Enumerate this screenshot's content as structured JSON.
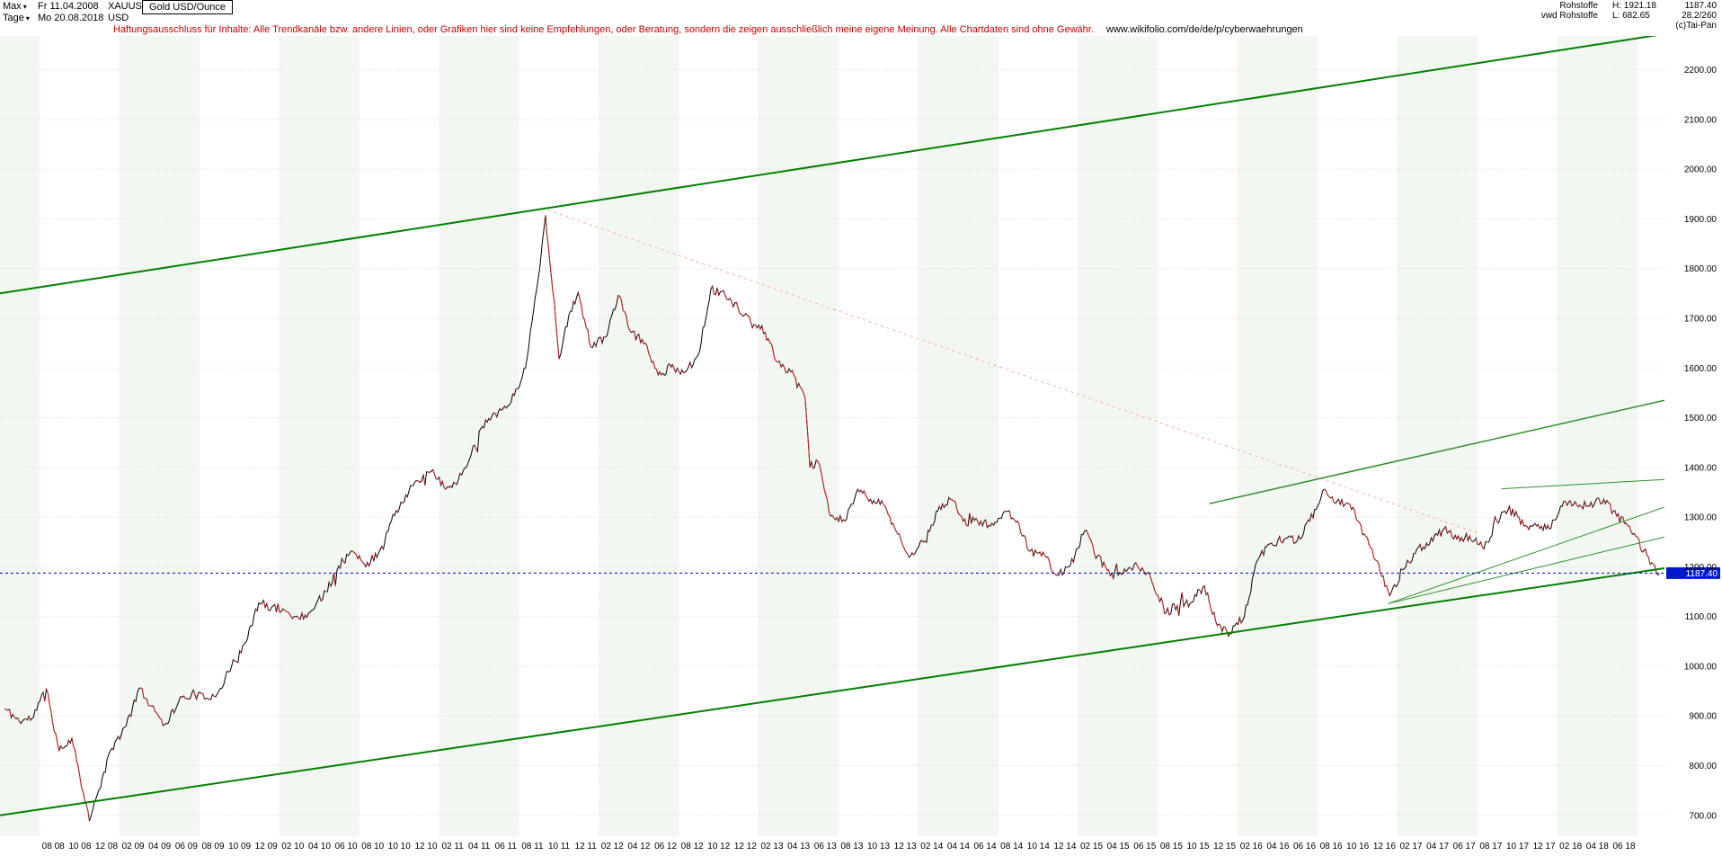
{
  "header": {
    "range_selector": {
      "label": "Max",
      "date": "Fr 11.04.2008"
    },
    "period_selector": {
      "label": "Tage",
      "date": "Mo 20.08.2018"
    },
    "symbol": "XAUUSD",
    "currency": "USD",
    "instrument_box": "Gold USD/Ounce",
    "disclaimer": "Haftungsausschluss für Inhalte: Alle Trendkanäle bzw. andere Linien, oder Grafiken hier sind keine Empfehlungen, oder Beratung, sondern die zeigen ausschließlich meine eigene Meinung. Alle Chartdaten sind ohne Gewähr.",
    "disclaimer_link": "www.wikifolio.com/de/de/p/cyberwaehrungen",
    "stats": {
      "row1_label": "Rohstoffe",
      "high_label": "H:",
      "high_value": "1921.18",
      "last_value": "1187.40",
      "row2_label": "vwd Rohstoffe",
      "low_label": "L:",
      "low_value": "682.65",
      "ratio_value": "28.2/260",
      "copyright": "(c)Tai-Pan"
    },
    "icons": {
      "dropdown_arrow": "▾"
    }
  },
  "chart_data": {
    "type": "line",
    "title": "Gold USD/Ounce",
    "symbol": "XAUUSD",
    "granularity": "Tage",
    "x_unit": "decimal_year",
    "x_range": [
      2008.25,
      2018.67
    ],
    "y_range": [
      658,
      2268
    ],
    "high": 1921.18,
    "low": 682.65,
    "last_price": 1187.4,
    "y_ticks": [
      700,
      800,
      900,
      1000,
      1100,
      1200,
      1300,
      1400,
      1500,
      1600,
      1700,
      1800,
      1900,
      2000,
      2100,
      2200
    ],
    "x_ticks": {
      "start_t": 2008.5833,
      "step_t": 0.1666667,
      "labels": [
        "08 08",
        "10 08",
        "12 08",
        "02 09",
        "04 09",
        "06 09",
        "08 09",
        "10 09",
        "12 09",
        "02 10",
        "04 10",
        "06 10",
        "08 10",
        "10 10",
        "12 10",
        "02 11",
        "04 11",
        "06 11",
        "08 11",
        "10 11",
        "12 11",
        "02 12",
        "04 12",
        "06 12",
        "08 12",
        "10 12",
        "12 12",
        "02 13",
        "04 13",
        "06 13",
        "08 13",
        "10 13",
        "12 13",
        "02 14",
        "04 14",
        "06 14",
        "08 14",
        "10 14",
        "12 14",
        "02 15",
        "04 15",
        "06 15",
        "08 15",
        "10 15",
        "12 15",
        "02 16",
        "04 16",
        "06 16",
        "08 16",
        "10 16",
        "12 16",
        "02 17",
        "04 17",
        "06 17",
        "08 17",
        "10 17",
        "12 17",
        "02 18",
        "04 18",
        "06 18"
      ]
    },
    "series": {
      "name": "XAUUSD Gold USD/Ounce",
      "noise": 9,
      "points": [
        [
          2008.28,
          915
        ],
        [
          2008.37,
          890
        ],
        [
          2008.45,
          895
        ],
        [
          2008.54,
          955
        ],
        [
          2008.62,
          830
        ],
        [
          2008.7,
          855
        ],
        [
          2008.79,
          722
        ],
        [
          2008.81,
          688
        ],
        [
          2008.87,
          752
        ],
        [
          2008.95,
          835
        ],
        [
          2009.04,
          880
        ],
        [
          2009.12,
          955
        ],
        [
          2009.2,
          920
        ],
        [
          2009.29,
          885
        ],
        [
          2009.37,
          930
        ],
        [
          2009.45,
          945
        ],
        [
          2009.54,
          935
        ],
        [
          2009.62,
          950
        ],
        [
          2009.7,
          1000
        ],
        [
          2009.79,
          1048
        ],
        [
          2009.87,
          1128
        ],
        [
          2009.95,
          1118
        ],
        [
          2010.04,
          1110
        ],
        [
          2010.12,
          1096
        ],
        [
          2010.2,
          1112
        ],
        [
          2010.29,
          1150
        ],
        [
          2010.37,
          1202
        ],
        [
          2010.45,
          1232
        ],
        [
          2010.54,
          1200
        ],
        [
          2010.62,
          1228
        ],
        [
          2010.7,
          1292
        ],
        [
          2010.79,
          1345
        ],
        [
          2010.87,
          1372
        ],
        [
          2010.95,
          1392
        ],
        [
          2011.04,
          1356
        ],
        [
          2011.12,
          1376
        ],
        [
          2011.2,
          1426
        ],
        [
          2011.29,
          1496
        ],
        [
          2011.37,
          1512
        ],
        [
          2011.45,
          1532
        ],
        [
          2011.54,
          1600
        ],
        [
          2011.62,
          1782
        ],
        [
          2011.665,
          1908
        ],
        [
          2011.7,
          1788
        ],
        [
          2011.75,
          1618
        ],
        [
          2011.79,
          1682
        ],
        [
          2011.87,
          1752
        ],
        [
          2011.95,
          1642
        ],
        [
          2012.04,
          1662
        ],
        [
          2012.12,
          1746
        ],
        [
          2012.2,
          1672
        ],
        [
          2012.29,
          1650
        ],
        [
          2012.37,
          1586
        ],
        [
          2012.45,
          1602
        ],
        [
          2012.54,
          1592
        ],
        [
          2012.62,
          1626
        ],
        [
          2012.7,
          1758
        ],
        [
          2012.79,
          1746
        ],
        [
          2012.87,
          1722
        ],
        [
          2012.95,
          1692
        ],
        [
          2013.04,
          1672
        ],
        [
          2013.12,
          1612
        ],
        [
          2013.2,
          1592
        ],
        [
          2013.29,
          1540
        ],
        [
          2013.32,
          1400
        ],
        [
          2013.37,
          1412
        ],
        [
          2013.45,
          1302
        ],
        [
          2013.54,
          1292
        ],
        [
          2013.62,
          1356
        ],
        [
          2013.7,
          1336
        ],
        [
          2013.79,
          1322
        ],
        [
          2013.87,
          1266
        ],
        [
          2013.95,
          1222
        ],
        [
          2014.04,
          1252
        ],
        [
          2014.12,
          1312
        ],
        [
          2014.2,
          1336
        ],
        [
          2014.29,
          1296
        ],
        [
          2014.37,
          1292
        ],
        [
          2014.45,
          1282
        ],
        [
          2014.54,
          1312
        ],
        [
          2014.62,
          1292
        ],
        [
          2014.7,
          1232
        ],
        [
          2014.79,
          1222
        ],
        [
          2014.87,
          1182
        ],
        [
          2014.95,
          1202
        ],
        [
          2015.04,
          1272
        ],
        [
          2015.12,
          1222
        ],
        [
          2015.2,
          1182
        ],
        [
          2015.29,
          1196
        ],
        [
          2015.37,
          1202
        ],
        [
          2015.45,
          1182
        ],
        [
          2015.54,
          1106
        ],
        [
          2015.62,
          1122
        ],
        [
          2015.7,
          1126
        ],
        [
          2015.79,
          1162
        ],
        [
          2015.87,
          1082
        ],
        [
          2015.95,
          1066
        ],
        [
          2016.04,
          1100
        ],
        [
          2016.12,
          1212
        ],
        [
          2016.2,
          1246
        ],
        [
          2016.29,
          1256
        ],
        [
          2016.37,
          1252
        ],
        [
          2016.45,
          1292
        ],
        [
          2016.54,
          1356
        ],
        [
          2016.62,
          1332
        ],
        [
          2016.7,
          1326
        ],
        [
          2016.79,
          1266
        ],
        [
          2016.87,
          1212
        ],
        [
          2016.95,
          1142
        ],
        [
          2017.04,
          1196
        ],
        [
          2017.12,
          1236
        ],
        [
          2017.2,
          1246
        ],
        [
          2017.29,
          1276
        ],
        [
          2017.37,
          1256
        ],
        [
          2017.45,
          1262
        ],
        [
          2017.54,
          1236
        ],
        [
          2017.62,
          1292
        ],
        [
          2017.7,
          1322
        ],
        [
          2017.79,
          1282
        ],
        [
          2017.87,
          1282
        ],
        [
          2017.95,
          1276
        ],
        [
          2018.04,
          1332
        ],
        [
          2018.12,
          1326
        ],
        [
          2018.2,
          1322
        ],
        [
          2018.29,
          1336
        ],
        [
          2018.37,
          1302
        ],
        [
          2018.45,
          1282
        ],
        [
          2018.54,
          1232
        ],
        [
          2018.6,
          1205
        ],
        [
          2018.638,
          1187.4
        ]
      ]
    },
    "trendlines": [
      {
        "name": "upper-channel",
        "t1": 2008.25,
        "p1": 1750,
        "t2": 2018.67,
        "p2": 2272,
        "color": "#008000",
        "width": 2,
        "dash": null
      },
      {
        "name": "lower-channel",
        "t1": 2008.25,
        "p1": 700,
        "t2": 2018.67,
        "p2": 1197,
        "color": "#008000",
        "width": 2,
        "dash": null
      },
      {
        "name": "resistance-2016",
        "t1": 2015.82,
        "p1": 1327,
        "t2": 2018.67,
        "p2": 1535,
        "color": "#2d8f2d",
        "width": 1.5,
        "dash": null
      },
      {
        "name": "support-fan-1",
        "t1": 2016.94,
        "p1": 1126,
        "t2": 2018.67,
        "p2": 1260,
        "color": "#2d8f2d",
        "width": 1,
        "dash": null
      },
      {
        "name": "support-fan-2",
        "t1": 2016.94,
        "p1": 1126,
        "t2": 2018.67,
        "p2": 1320,
        "color": "#2d8f2d",
        "width": 1,
        "dash": null
      },
      {
        "name": "resistance-flat",
        "t1": 2017.65,
        "p1": 1357,
        "t2": 2018.69,
        "p2": 1376,
        "color": "#2d8f2d",
        "width": 1,
        "dash": null
      },
      {
        "name": "downtrend-from-peak",
        "t1": 2011.68,
        "p1": 1918,
        "t2": 2017.5,
        "p2": 1268,
        "color": "#ffb3b3",
        "width": 1.2,
        "dash": "3,4"
      }
    ],
    "last_price_line": {
      "value": 1187.4,
      "label": "1187.40",
      "color": "#0000cc",
      "box_color": "#0019cc",
      "text_color": "#ffffff"
    },
    "style": {
      "band_color": "#f2f7f1",
      "grid_color": "#d8d8d8",
      "year_line_color": "#e2e8e2",
      "up_color": "#000000",
      "down_color": "#cc2222",
      "axis_text_color": "#000000"
    },
    "legend_position": "none",
    "grid": true
  }
}
